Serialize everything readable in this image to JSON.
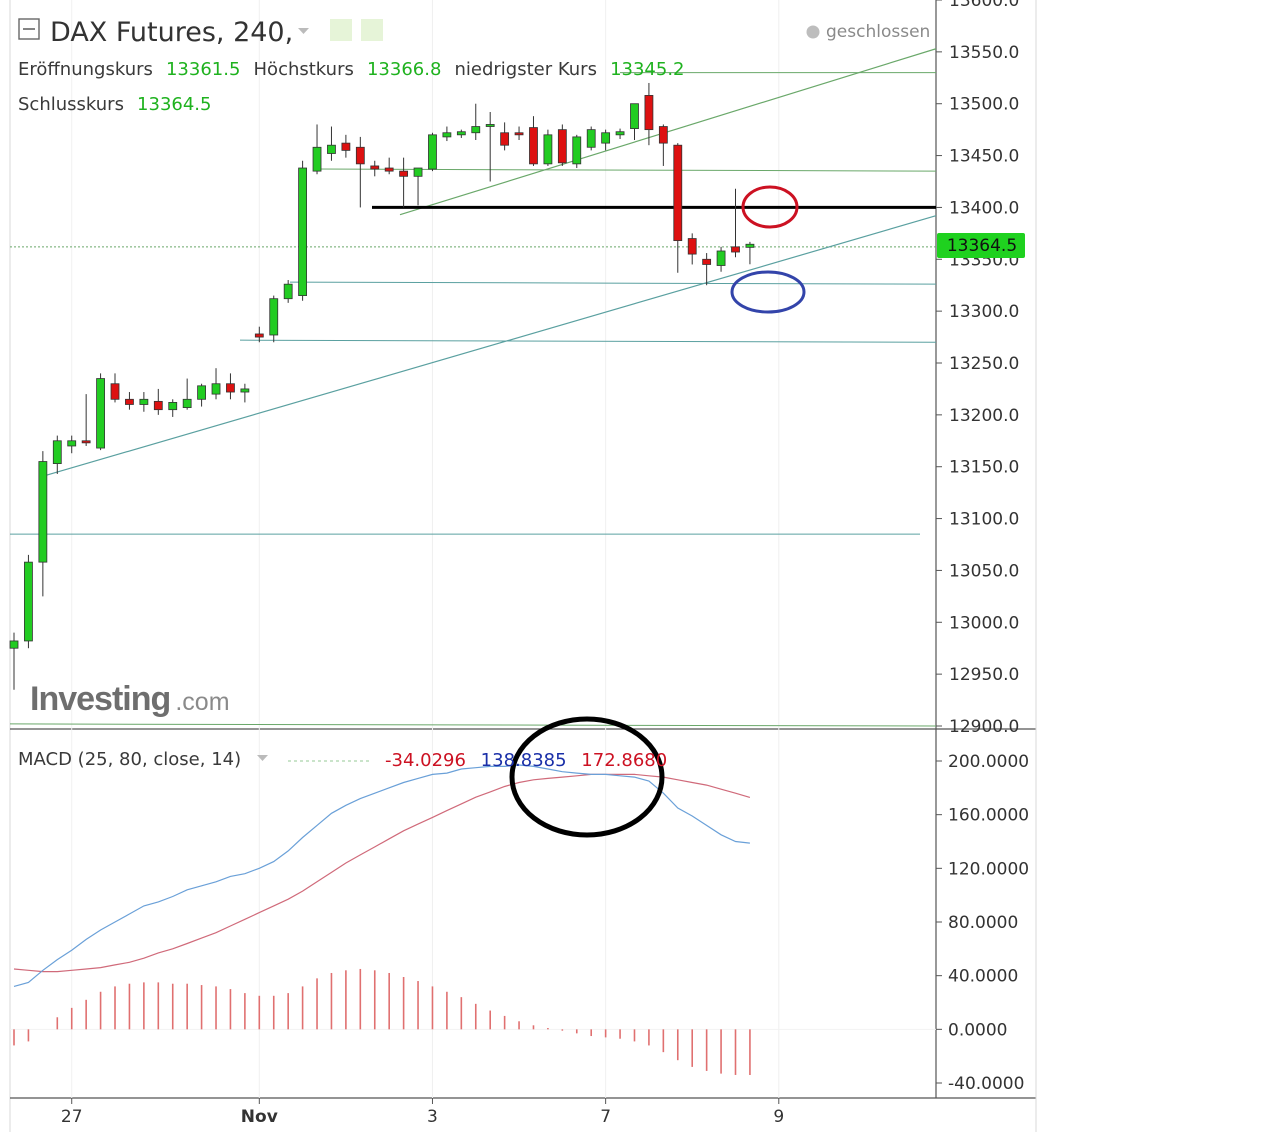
{
  "header": {
    "symbol": "DAX Futures, 240,",
    "status": "geschlossen",
    "open_label": "Eröffnungskurs",
    "open_value": "13361.5",
    "high_label": "Höchstkurs",
    "high_value": "13366.8",
    "low_label": "niedrigster Kurs",
    "low_value": "13345.2",
    "close_label": "Schlusskurs",
    "close_value": "13364.5"
  },
  "watermark": {
    "brand": "Investing",
    "suffix": ".com"
  },
  "price_tag": "13364.5",
  "macd_header": {
    "label": "MACD (25, 80, close, 14)",
    "hist_value": "-34.0296",
    "macd_value": "138.8385",
    "signal_value": "172.8680"
  },
  "colors": {
    "up": "#22cc22",
    "down": "#dd1111",
    "macd_line": "#6aa0d8",
    "signal_line": "#d06a7a",
    "histogram": "#e07070",
    "trendline": "#6aa86a",
    "support": "#5aa0a0",
    "resistance": "#000000",
    "price_tag": "#1fd11f",
    "circle_red": "#cc1122",
    "circle_blue": "#3344aa",
    "circle_black": "#000000"
  },
  "chart_data": [
    {
      "type": "candlestick",
      "title": "DAX Futures, 240,",
      "x_tick_labels": [
        {
          "label": "27",
          "index": 4
        },
        {
          "label": "Nov",
          "index": 17
        },
        {
          "label": "3",
          "index": 29
        },
        {
          "label": "7",
          "index": 41
        },
        {
          "label": "9",
          "index": 53
        }
      ],
      "y_ticks": [
        12900,
        12950,
        13000,
        13050,
        13100,
        13150,
        13200,
        13250,
        13300,
        13350,
        13400,
        13450,
        13500,
        13550,
        13600
      ],
      "y_tick_labels": [
        "12900.0",
        "12950.0",
        "13000.0",
        "13050.0",
        "13100.0",
        "13150.0",
        "13200.0",
        "13250.0",
        "13300.0",
        "13350.0",
        "13400.0",
        "13450.0",
        "13500.0",
        "13550.0",
        "13600.0"
      ],
      "ylim": [
        12897,
        13605
      ],
      "last_price": 13364.5,
      "candles": [
        {
          "o": 12975,
          "h": 12990,
          "l": 12935,
          "c": 12982
        },
        {
          "o": 12982,
          "h": 13065,
          "l": 12975,
          "c": 13058
        },
        {
          "o": 13058,
          "h": 13165,
          "l": 13025,
          "c": 13155
        },
        {
          "o": 13153,
          "h": 13180,
          "l": 13143,
          "c": 13175
        },
        {
          "o": 13170,
          "h": 13180,
          "l": 13163,
          "c": 13175
        },
        {
          "o": 13175,
          "h": 13220,
          "l": 13170,
          "c": 13173
        },
        {
          "o": 13168,
          "h": 13240,
          "l": 13166,
          "c": 13235
        },
        {
          "o": 13230,
          "h": 13240,
          "l": 13212,
          "c": 13215
        },
        {
          "o": 13215,
          "h": 13222,
          "l": 13205,
          "c": 13210
        },
        {
          "o": 13210,
          "h": 13222,
          "l": 13203,
          "c": 13215
        },
        {
          "o": 13213,
          "h": 13225,
          "l": 13200,
          "c": 13205
        },
        {
          "o": 13205,
          "h": 13215,
          "l": 13198,
          "c": 13212
        },
        {
          "o": 13207,
          "h": 13235,
          "l": 13205,
          "c": 13215
        },
        {
          "o": 13215,
          "h": 13230,
          "l": 13208,
          "c": 13228
        },
        {
          "o": 13220,
          "h": 13245,
          "l": 13215,
          "c": 13230
        },
        {
          "o": 13230,
          "h": 13240,
          "l": 13215,
          "c": 13222
        },
        {
          "o": 13222,
          "h": 13230,
          "l": 13212,
          "c": 13225
        },
        {
          "o": 13278,
          "h": 13285,
          "l": 13270,
          "c": 13275
        },
        {
          "o": 13277,
          "h": 13315,
          "l": 13270,
          "c": 13312
        },
        {
          "o": 13312,
          "h": 13330,
          "l": 13308,
          "c": 13326
        },
        {
          "o": 13315,
          "h": 13445,
          "l": 13310,
          "c": 13438
        },
        {
          "o": 13435,
          "h": 13480,
          "l": 13432,
          "c": 13458
        },
        {
          "o": 13452,
          "h": 13478,
          "l": 13445,
          "c": 13460
        },
        {
          "o": 13462,
          "h": 13470,
          "l": 13448,
          "c": 13455
        },
        {
          "o": 13458,
          "h": 13468,
          "l": 13400,
          "c": 13442
        },
        {
          "o": 13440,
          "h": 13445,
          "l": 13430,
          "c": 13437
        },
        {
          "o": 13438,
          "h": 13448,
          "l": 13432,
          "c": 13435
        },
        {
          "o": 13435,
          "h": 13448,
          "l": 13400,
          "c": 13430
        },
        {
          "o": 13430,
          "h": 13438,
          "l": 13402,
          "c": 13438
        },
        {
          "o": 13437,
          "h": 13472,
          "l": 13435,
          "c": 13470
        },
        {
          "o": 13468,
          "h": 13478,
          "l": 13464,
          "c": 13472
        },
        {
          "o": 13470,
          "h": 13475,
          "l": 13467,
          "c": 13473
        },
        {
          "o": 13472,
          "h": 13500,
          "l": 13465,
          "c": 13478
        },
        {
          "o": 13478,
          "h": 13492,
          "l": 13425,
          "c": 13480
        },
        {
          "o": 13472,
          "h": 13482,
          "l": 13455,
          "c": 13460
        },
        {
          "o": 13472,
          "h": 13478,
          "l": 13465,
          "c": 13470
        },
        {
          "o": 13477,
          "h": 13488,
          "l": 13440,
          "c": 13442
        },
        {
          "o": 13442,
          "h": 13475,
          "l": 13440,
          "c": 13470
        },
        {
          "o": 13475,
          "h": 13480,
          "l": 13440,
          "c": 13443
        },
        {
          "o": 13442,
          "h": 13470,
          "l": 13438,
          "c": 13468
        },
        {
          "o": 13458,
          "h": 13478,
          "l": 13455,
          "c": 13475
        },
        {
          "o": 13462,
          "h": 13475,
          "l": 13455,
          "c": 13472
        },
        {
          "o": 13470,
          "h": 13476,
          "l": 13466,
          "c": 13473
        },
        {
          "o": 13476,
          "h": 13500,
          "l": 13465,
          "c": 13500
        },
        {
          "o": 13508,
          "h": 13520,
          "l": 13460,
          "c": 13475
        },
        {
          "o": 13478,
          "h": 13480,
          "l": 13440,
          "c": 13462
        },
        {
          "o": 13460,
          "h": 13462,
          "l": 13337,
          "c": 13368
        },
        {
          "o": 13370,
          "h": 13375,
          "l": 13345,
          "c": 13355
        },
        {
          "o": 13350,
          "h": 13356,
          "l": 13325,
          "c": 13345
        },
        {
          "o": 13344,
          "h": 13362,
          "l": 13338,
          "c": 13358
        },
        {
          "o": 13362,
          "h": 13418,
          "l": 13352,
          "c": 13357
        },
        {
          "o": 13361.5,
          "h": 13366.8,
          "l": 13345.2,
          "c": 13364.5
        }
      ],
      "annotations": {
        "resistance_level": 13400,
        "support_level": 13328
      }
    },
    {
      "type": "line",
      "title": "MACD (25, 80, close, 14)",
      "y_ticks": [
        -40,
        0,
        40,
        80,
        120,
        160,
        200
      ],
      "y_tick_labels": [
        "-40.0000",
        "0.0000",
        "40.0000",
        "80.0000",
        "120.0000",
        "160.0000",
        "200.0000"
      ],
      "ylim": [
        -45,
        215
      ],
      "series": [
        {
          "name": "MACD",
          "values": [
            32,
            35,
            44,
            52,
            59,
            67,
            74,
            80,
            86,
            92,
            95,
            99,
            104,
            107,
            110,
            114,
            116,
            120,
            125,
            133,
            143,
            152,
            161,
            167,
            172,
            176,
            180,
            184,
            187,
            190,
            191,
            194,
            195,
            196,
            196,
            197,
            196,
            194,
            192,
            191,
            190,
            190,
            189,
            188,
            185,
            176,
            165,
            159,
            152,
            145,
            140,
            138.8385
          ]
        },
        {
          "name": "Signal",
          "values": [
            45,
            44,
            43,
            43,
            44,
            45,
            46,
            48,
            50,
            53,
            57,
            60,
            64,
            68,
            72,
            77,
            82,
            87,
            92,
            97,
            103,
            110,
            117,
            124,
            130,
            136,
            142,
            148,
            153,
            158,
            163,
            168,
            173,
            177,
            181,
            184,
            186,
            187,
            188,
            189,
            190,
            190,
            190,
            190,
            189,
            188,
            186,
            184,
            182,
            179,
            176,
            172.868
          ]
        },
        {
          "name": "Histogram",
          "values": [
            -12,
            -9,
            0,
            9,
            16,
            22,
            28,
            32,
            34,
            35,
            35,
            34,
            34,
            33,
            32,
            30,
            27,
            25,
            25,
            27,
            32,
            38,
            42,
            44,
            45,
            44,
            42,
            39,
            36,
            32,
            28,
            24,
            19,
            14,
            10,
            6,
            3,
            1,
            -1,
            -3,
            -5,
            -6,
            -7,
            -9,
            -12,
            -17,
            -23,
            -28,
            -31,
            -33,
            -34,
            -34.0296
          ]
        }
      ]
    }
  ]
}
